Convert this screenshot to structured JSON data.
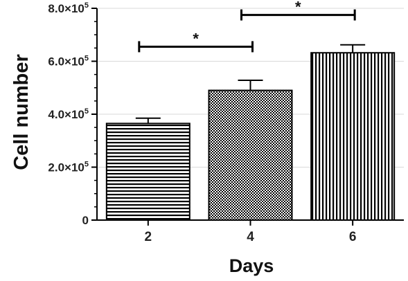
{
  "chart_data": {
    "type": "bar",
    "xlabel": "Days",
    "ylabel": "Cell number",
    "categories": [
      "2",
      "4",
      "6"
    ],
    "values": [
      365000,
      490000,
      632000
    ],
    "errors": [
      20000,
      38000,
      30000
    ],
    "ylim": [
      0,
      800000
    ],
    "yticks": [
      {
        "value": 0,
        "base": "0",
        "exp": ""
      },
      {
        "value": 200000,
        "base": "2.0×10",
        "exp": "5"
      },
      {
        "value": 400000,
        "base": "4.0×10",
        "exp": "5"
      },
      {
        "value": 600000,
        "base": "6.0×10",
        "exp": "5"
      },
      {
        "value": 800000,
        "base": "8.0×10",
        "exp": "5"
      }
    ],
    "minor_ticks_per_interval": 4,
    "grid": true,
    "bar_patterns": [
      "horizontal-stripes",
      "checkerboard",
      "vertical-stripes"
    ],
    "significance": [
      {
        "from": 0,
        "to": 1,
        "y": 655000,
        "label": "*"
      },
      {
        "from": 1,
        "to": 2,
        "y": 775000,
        "label": "*"
      }
    ],
    "colors": {
      "bar_stroke": "#000000",
      "grid": "#d9d9d9",
      "text": "#111111"
    }
  }
}
